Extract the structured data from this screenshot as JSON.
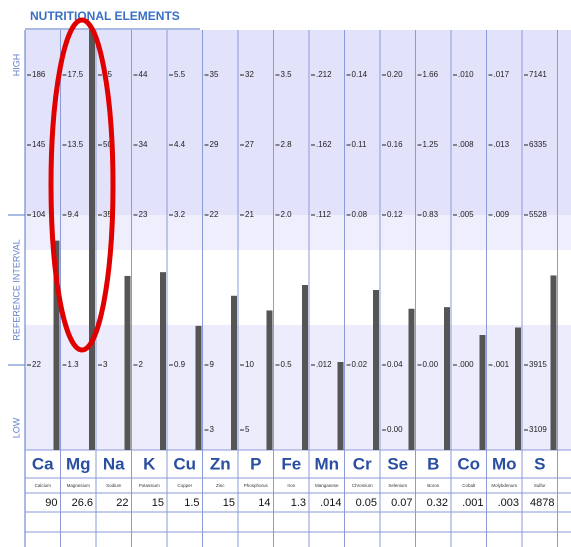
{
  "header": {
    "title": "NUTRITIONAL ELEMENTS"
  },
  "side_labels": {
    "high": "HIGH",
    "reference": "REFERENCE INTERVAL",
    "low": "LOW"
  },
  "elements": [
    {
      "symbol": "Ca",
      "name": "Calcium",
      "result": 90,
      "ticks": [
        186,
        145,
        104,
        22
      ]
    },
    {
      "symbol": "Mg",
      "name": "Magnesium",
      "result": 26.6,
      "ticks": [
        17.5,
        13.5,
        9.4,
        1.3
      ]
    },
    {
      "symbol": "Na",
      "name": "Sodium",
      "result": 22,
      "ticks": [
        65,
        50,
        35,
        3
      ]
    },
    {
      "symbol": "K",
      "name": "Potassium",
      "result": 15,
      "ticks": [
        44,
        34,
        23,
        2
      ]
    },
    {
      "symbol": "Cu",
      "name": "Copper",
      "result": 1.5,
      "ticks": [
        5.5,
        4.4,
        3.2,
        0.9
      ]
    },
    {
      "symbol": "Zn",
      "name": "Zinc",
      "result": 15,
      "ticks": [
        35,
        29,
        22,
        9,
        3
      ]
    },
    {
      "symbol": "P",
      "name": "Phosphorus",
      "result": 14,
      "ticks": [
        32,
        27,
        21,
        10,
        5
      ]
    },
    {
      "symbol": "Fe",
      "name": "Iron",
      "result": 1.3,
      "ticks": [
        3.5,
        2.8,
        {
          "value": 2.0,
          "label": "2.0"
        },
        0.5
      ]
    },
    {
      "symbol": "Mn",
      "name": "Manganese",
      "result": {
        "value": 0.014,
        "label": ".014"
      },
      "ticks": [
        {
          "value": 0.212,
          "label": ".212"
        },
        {
          "value": 0.162,
          "label": ".162"
        },
        {
          "value": 0.112,
          "label": ".112"
        },
        {
          "value": 0.012,
          "label": ".012"
        }
      ]
    },
    {
      "symbol": "Cr",
      "name": "Chromium",
      "result": 0.05,
      "ticks": [
        0.14,
        0.11,
        0.08,
        0.02
      ]
    },
    {
      "symbol": "Se",
      "name": "Selenium",
      "result": 0.07,
      "ticks": [
        {
          "value": 0.2,
          "label": "0.20"
        },
        0.16,
        0.12,
        0.04,
        {
          "value": 0,
          "label": "0.00"
        }
      ]
    },
    {
      "symbol": "B",
      "name": "Boron",
      "result": 0.32,
      "ticks": [
        1.66,
        1.25,
        0.83,
        {
          "value": 0,
          "label": "0.00"
        }
      ]
    },
    {
      "symbol": "Co",
      "name": "Cobalt",
      "result": {
        "value": 0.001,
        "label": ".001"
      },
      "ticks": [
        {
          "value": 0.01,
          "label": ".010"
        },
        {
          "value": 0.008,
          "label": ".008"
        },
        {
          "value": 0.005,
          "label": ".005"
        },
        {
          "value": 0,
          "label": ".000"
        }
      ]
    },
    {
      "symbol": "Mo",
      "name": "Molybdenum",
      "result": {
        "value": 0.003,
        "label": ".003"
      },
      "ticks": [
        {
          "value": 0.017,
          "label": ".017"
        },
        {
          "value": 0.013,
          "label": ".013"
        },
        {
          "value": 0.009,
          "label": ".009"
        },
        {
          "value": 0.001,
          "label": ".001"
        }
      ]
    },
    {
      "symbol": "S",
      "name": "Sulfur",
      "result": 4878,
      "ticks": [
        7141,
        6335,
        5528,
        3915,
        3109
      ]
    }
  ]
}
